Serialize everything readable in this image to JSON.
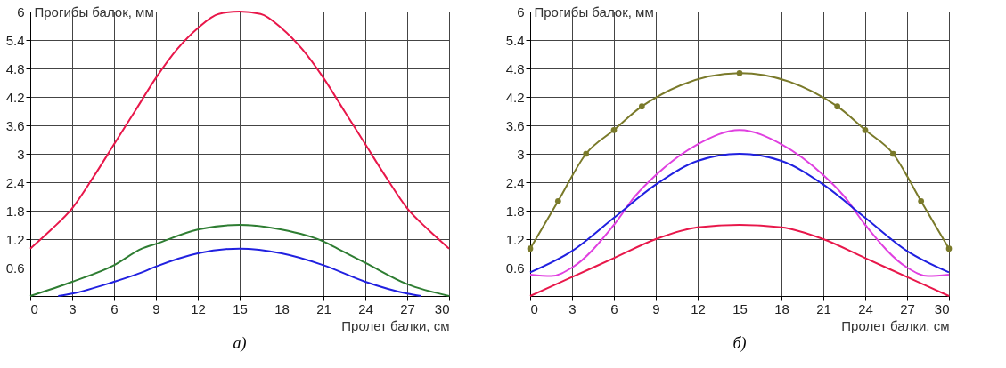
{
  "chart_data": [
    {
      "type": "line",
      "title": "а)",
      "xlabel": "Пролет балки, см",
      "ylabel": "Прогибы балок, мм",
      "xlim": [
        0,
        30
      ],
      "ylim": [
        0,
        6
      ],
      "xticks": [
        0,
        3,
        6,
        9,
        12,
        15,
        18,
        21,
        24,
        27,
        30
      ],
      "yticks": [
        0.6,
        1.2,
        1.8,
        2.4,
        3,
        3.6,
        4.2,
        4.8,
        5.4,
        6
      ],
      "grid": true,
      "legend": false,
      "series": [
        {
          "color": "#e8174a",
          "x": [
            0,
            1.5,
            3,
            4.5,
            6,
            7.5,
            9,
            10.5,
            12,
            13.5,
            15,
            16.5,
            18,
            19.5,
            21,
            22.5,
            24,
            25.5,
            27,
            28.5,
            30
          ],
          "values": [
            1.0,
            1.4,
            1.85,
            2.5,
            3.2,
            3.9,
            4.6,
            5.2,
            5.65,
            5.95,
            6.0,
            5.95,
            5.65,
            5.2,
            4.6,
            3.9,
            3.2,
            2.5,
            1.85,
            1.4,
            1.0
          ]
        },
        {
          "color": "#2e7d32",
          "x": [
            0,
            3,
            6,
            8,
            9,
            12,
            15,
            18,
            21,
            22,
            24,
            27,
            30
          ],
          "values": [
            0,
            0.3,
            0.65,
            1.0,
            1.1,
            1.4,
            1.5,
            1.4,
            1.15,
            1.0,
            0.7,
            0.25,
            0
          ]
        },
        {
          "color": "#2020e0",
          "x": [
            2,
            3,
            6,
            8,
            9,
            12,
            15,
            18,
            21,
            24,
            27,
            28
          ],
          "values": [
            0,
            0.05,
            0.3,
            0.5,
            0.62,
            0.9,
            1.0,
            0.9,
            0.65,
            0.3,
            0.05,
            0
          ]
        }
      ]
    },
    {
      "type": "line",
      "title": "б)",
      "xlabel": "Пролет балки, см",
      "ylabel": "Прогибы балок, мм",
      "xlim": [
        0,
        30
      ],
      "ylim": [
        0,
        6
      ],
      "xticks": [
        0,
        3,
        6,
        9,
        12,
        15,
        18,
        21,
        24,
        27,
        30
      ],
      "yticks": [
        0.6,
        1.2,
        1.8,
        2.4,
        3,
        3.6,
        4.2,
        4.8,
        5.4,
        6
      ],
      "grid": true,
      "legend": false,
      "series": [
        {
          "color": "#7a7a2a",
          "marker": "circle",
          "x": [
            0,
            2,
            4,
            6,
            8,
            15,
            22,
            24,
            26,
            28,
            30
          ],
          "values": [
            1.0,
            2.0,
            3.0,
            3.5,
            4.0,
            4.7,
            4.0,
            3.5,
            3.0,
            2.0,
            1.0
          ]
        },
        {
          "color": "#e040e0",
          "x": [
            0,
            1.5,
            3,
            6,
            7.5,
            9,
            12,
            15,
            18,
            21,
            22.5,
            24,
            27,
            28.5,
            30
          ],
          "values": [
            0.45,
            0.42,
            0.6,
            1.5,
            2.1,
            2.55,
            3.2,
            3.5,
            3.2,
            2.55,
            2.1,
            1.5,
            0.6,
            0.42,
            0.45
          ]
        },
        {
          "color": "#2020e0",
          "x": [
            0,
            3,
            6,
            9,
            12,
            15,
            18,
            21,
            24,
            27,
            30
          ],
          "values": [
            0.5,
            0.95,
            1.65,
            2.35,
            2.85,
            3.0,
            2.85,
            2.35,
            1.65,
            0.95,
            0.5
          ]
        },
        {
          "color": "#e8174a",
          "x": [
            0,
            3,
            6,
            9,
            12,
            15,
            18,
            21,
            24,
            27,
            30
          ],
          "values": [
            0,
            0.4,
            0.8,
            1.2,
            1.45,
            1.5,
            1.45,
            1.2,
            0.8,
            0.4,
            0
          ]
        }
      ]
    }
  ]
}
